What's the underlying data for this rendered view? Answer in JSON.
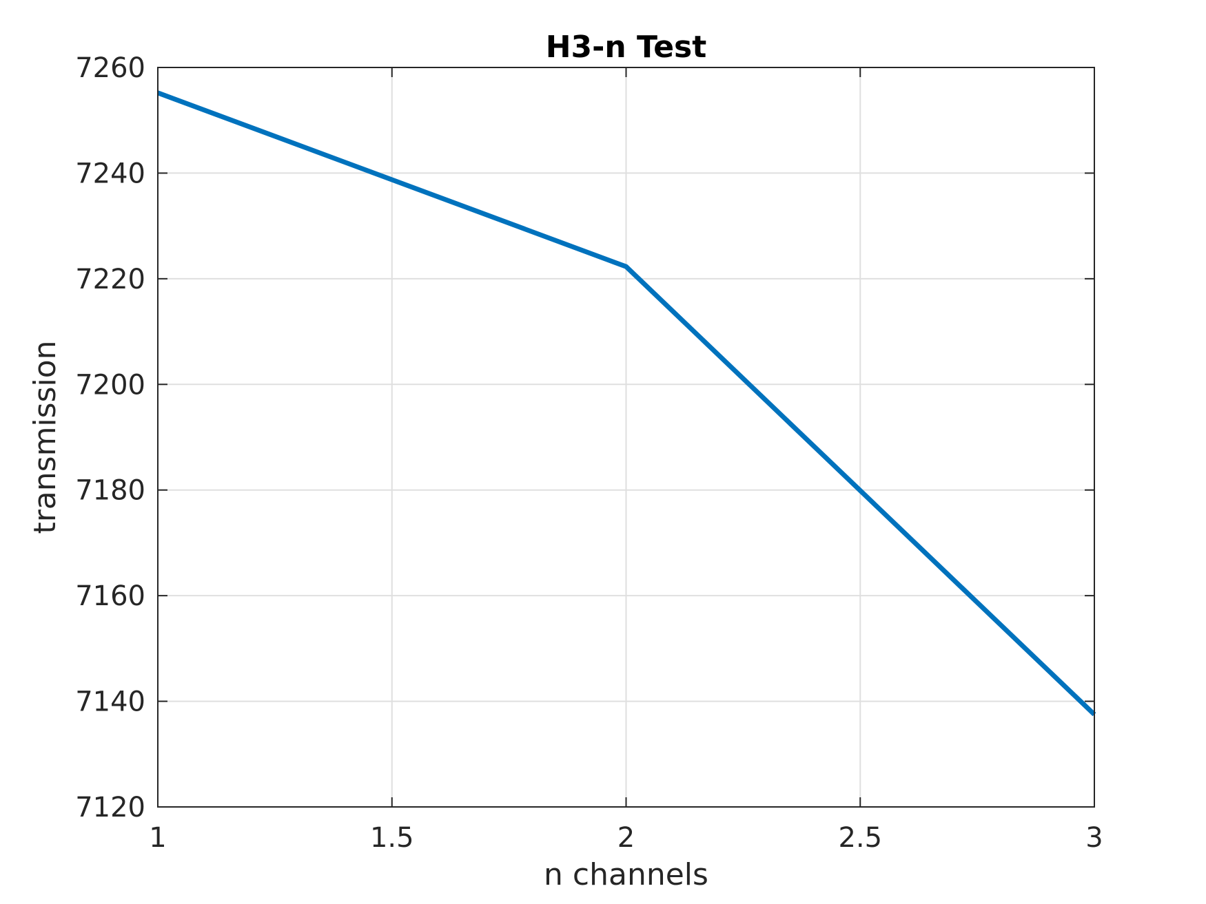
{
  "chart_data": {
    "type": "line",
    "title": "H3-n Test",
    "xlabel": "n channels",
    "ylabel": "transmission",
    "xlim": [
      1,
      3
    ],
    "ylim": [
      7120,
      7260
    ],
    "xticks": [
      1,
      1.5,
      2,
      2.5,
      3
    ],
    "yticks": [
      7120,
      7140,
      7160,
      7180,
      7200,
      7220,
      7240,
      7260
    ],
    "xtick_labels": [
      "1",
      "1.5",
      "2",
      "2.5",
      "3"
    ],
    "ytick_labels": [
      "7120",
      "7140",
      "7160",
      "7180",
      "7200",
      "7220",
      "7240",
      "7260"
    ],
    "grid": true,
    "series": [
      {
        "x": [
          1,
          2,
          3
        ],
        "y": [
          7255.2,
          7222.3,
          7137.5
        ],
        "color": "#0072BD"
      }
    ]
  }
}
